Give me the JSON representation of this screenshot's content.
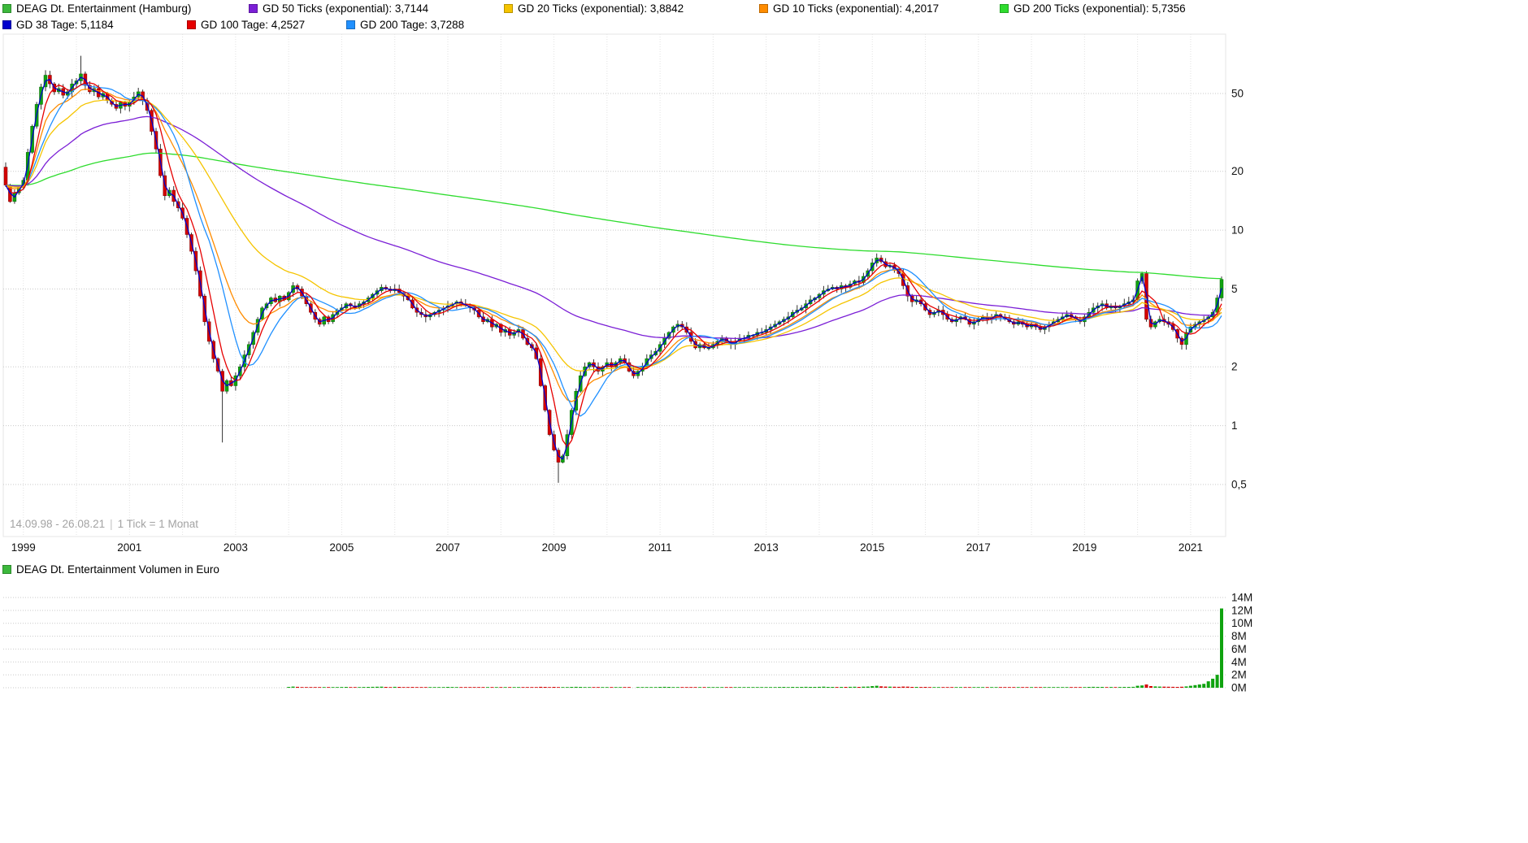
{
  "legend": {
    "row1": [
      {
        "label": "DEAG Dt. Entertainment (Hamburg)",
        "color": "#3cb83c"
      },
      {
        "label": "GD 50 Ticks (exponential): 3,7144",
        "color": "#7b1fd6"
      },
      {
        "label": "GD 20 Ticks (exponential): 3,8842",
        "color": "#f5c400"
      },
      {
        "label": "GD 10 Ticks (exponential): 4,2017",
        "color": "#ff8c00"
      },
      {
        "label": "GD 200 Ticks (exponential): 5,7356",
        "color": "#2edc2e"
      }
    ],
    "row2": [
      {
        "label": "GD 38 Tage: 5,1184",
        "color": "#0000cd"
      },
      {
        "label": "GD 100 Tage: 4,2527",
        "color": "#e60000"
      },
      {
        "label": "GD 200 Tage: 3,7288",
        "color": "#2090ff"
      }
    ]
  },
  "footer_note": {
    "range": "14.09.98 - 26.08.21",
    "separator": "|",
    "tick": "1 Tick = 1 Monat"
  },
  "volume_panel": {
    "legend": "DEAG Dt. Entertainment Volumen in Euro",
    "swatch_color": "#3cb83c",
    "y_ticks": [
      {
        "v": 14,
        "label": "14M"
      },
      {
        "v": 12,
        "label": "12M"
      },
      {
        "v": 10,
        "label": "10M"
      },
      {
        "v": 8,
        "label": "8M"
      },
      {
        "v": 6,
        "label": "6M"
      },
      {
        "v": 4,
        "label": "4M"
      },
      {
        "v": 2,
        "label": "2M"
      },
      {
        "v": 0,
        "label": "0M"
      }
    ]
  },
  "style": {
    "background": "#ffffff",
    "candle_up": "#0fa30f",
    "candle_down": "#d40000",
    "candle_up_edge": "#066606",
    "candle_down_edge": "#7d0000",
    "wick": "#333333",
    "grid_h": "#c9c9c9",
    "grid_v": "#e2e2e2",
    "axis_text": "#111111",
    "note_text": "#a3a3a3"
  },
  "chart_data": {
    "type": "candlestick",
    "title": "DEAG Dt. Entertainment (Hamburg)",
    "scale": "log",
    "interval": "1 Tick = 1 Monat",
    "date_range": "14.09.98 - 26.08.21",
    "x_start": "1998-09",
    "x_end": "2021-08",
    "x_tick_labels": [
      "1999",
      "2001",
      "2003",
      "2005",
      "2007",
      "2009",
      "2011",
      "2013",
      "2015",
      "2017",
      "2019",
      "2021"
    ],
    "y_ticks": [
      {
        "v": 50,
        "label": "50"
      },
      {
        "v": 20,
        "label": "20"
      },
      {
        "v": 10,
        "label": "10"
      },
      {
        "v": 5,
        "label": "5"
      },
      {
        "v": 2,
        "label": "2"
      },
      {
        "v": 1,
        "label": "1"
      },
      {
        "v": 0.5,
        "label": "0,5"
      }
    ],
    "y_range_approx": [
      0.27,
      100
    ],
    "first_open": 21,
    "closes": [
      17,
      14,
      15.5,
      16.5,
      18,
      25,
      34,
      44,
      54,
      62,
      56,
      51,
      53,
      49,
      51,
      56,
      58,
      63,
      55,
      51,
      53,
      48,
      50,
      46,
      44,
      42,
      45,
      43,
      45,
      48,
      51,
      46,
      41,
      32,
      26,
      19,
      15,
      16,
      14,
      13,
      11.5,
      9.5,
      7.8,
      6.2,
      4.6,
      3.4,
      2.7,
      2.2,
      1.9,
      1.5,
      1.7,
      1.6,
      1.8,
      2,
      2.3,
      2.6,
      3,
      3.5,
      4,
      4.2,
      4.5,
      4.3,
      4.6,
      4.4,
      4.8,
      5.2,
      5,
      4.6,
      4.2,
      3.8,
      3.5,
      3.3,
      3.6,
      3.4,
      3.7,
      3.9,
      4,
      4.2,
      4.1,
      4,
      4.2,
      4.3,
      4.5,
      4.7,
      4.9,
      5.1,
      5,
      4.9,
      5,
      4.8,
      4.6,
      4.4,
      4,
      3.8,
      3.7,
      3.6,
      3.7,
      3.8,
      3.9,
      4,
      4.1,
      4.2,
      4.3,
      4.2,
      4.1,
      4,
      3.9,
      3.6,
      3.4,
      3.5,
      3.2,
      3.3,
      3,
      3.1,
      2.9,
      3,
      3.1,
      2.8,
      2.6,
      2.5,
      2.2,
      1.6,
      1.2,
      0.9,
      0.75,
      0.65,
      0.7,
      0.9,
      1.2,
      1.5,
      1.8,
      2,
      2.1,
      2,
      1.9,
      2,
      2.1,
      2,
      2.1,
      2.2,
      2.1,
      1.9,
      1.8,
      1.9,
      2,
      2.2,
      2.3,
      2.4,
      2.6,
      2.8,
      3,
      3.2,
      3.3,
      3.2,
      3,
      2.7,
      2.5,
      2.6,
      2.5,
      2.5,
      2.6,
      2.7,
      2.8,
      2.7,
      2.6,
      2.7,
      2.8,
      2.8,
      2.9,
      2.9,
      3,
      3,
      3.1,
      3.2,
      3.3,
      3.4,
      3.5,
      3.6,
      3.8,
      3.9,
      4,
      4.2,
      4.4,
      4.5,
      4.7,
      4.9,
      5,
      5.1,
      5,
      5.2,
      5.1,
      5.3,
      5.5,
      5.4,
      5.8,
      6.2,
      6.8,
      7.2,
      6.9,
      6.5,
      6.6,
      6.3,
      6,
      5.2,
      4.6,
      4.3,
      4.4,
      4.2,
      3.9,
      3.7,
      3.8,
      3.9,
      3.7,
      3.5,
      3.4,
      3.5,
      3.6,
      3.5,
      3.3,
      3.4,
      3.5,
      3.6,
      3.5,
      3.6,
      3.7,
      3.6,
      3.5,
      3.4,
      3.3,
      3.4,
      3.3,
      3.2,
      3.3,
      3.2,
      3.1,
      3.2,
      3.3,
      3.4,
      3.5,
      3.6,
      3.7,
      3.6,
      3.5,
      3.4,
      3.6,
      3.8,
      4,
      4.1,
      4.2,
      4,
      4.1,
      4,
      4.1,
      4.2,
      4.3,
      4.4,
      5.5,
      6,
      3.5,
      3.2,
      3.4,
      3.5,
      3.4,
      3.3,
      3.1,
      2.8,
      2.6,
      3,
      3.2,
      3.3,
      3.4,
      3.5,
      3.6,
      3.8,
      4.5,
      5.6
    ],
    "wick_overrides": [
      {
        "i": 17,
        "high": 78
      },
      {
        "i": 49,
        "low": 0.82
      },
      {
        "i": 125,
        "low": 0.51
      },
      {
        "i": 197,
        "high": 7.6
      },
      {
        "i": 266,
        "low": 2.45
      }
    ],
    "volumes_millions": [
      0.01,
      0.02,
      0.01,
      0.02,
      0.02,
      0.03,
      0.03,
      0.04,
      0.04,
      0.03,
      0.02,
      0.02,
      0.02,
      0.02,
      0.02,
      0.02,
      0.03,
      0.03,
      0.02,
      0.02,
      0.02,
      0.01,
      0.02,
      0.01,
      0.01,
      0.01,
      0.01,
      0.01,
      0.02,
      0.02,
      0.03,
      0.02,
      0.02,
      0.03,
      0.02,
      0.03,
      0.03,
      0.02,
      0.02,
      0.02,
      0.02,
      0.02,
      0.02,
      0.03,
      0.03,
      0.02,
      0.03,
      0.02,
      0.02,
      0.03,
      0.02,
      0.02,
      0.02,
      0.02,
      0.02,
      0.03,
      0.04,
      0.05,
      0.05,
      0.04,
      0.05,
      0.03,
      0.04,
      0.03,
      0.12,
      0.18,
      0.14,
      0.1,
      0.09,
      0.08,
      0.07,
      0.06,
      0.08,
      0.07,
      0.09,
      0.1,
      0.11,
      0.13,
      0.1,
      0.09,
      0.1,
      0.11,
      0.12,
      0.14,
      0.15,
      0.16,
      0.12,
      0.1,
      0.14,
      0.12,
      0.1,
      0.09,
      0.11,
      0.08,
      0.07,
      0.06,
      0.07,
      0.08,
      0.09,
      0.1,
      0.12,
      0.11,
      0.1,
      0.09,
      0.08,
      0.09,
      0.08,
      0.1,
      0.09,
      0.08,
      0.1,
      0.09,
      0.1,
      0.09,
      0.08,
      0.07,
      0.08,
      0.09,
      0.08,
      0.07,
      0.1,
      0.14,
      0.12,
      0.1,
      0.12,
      0.1,
      0.08,
      0.1,
      0.12,
      0.14,
      0.12,
      0.1,
      0.09,
      0.08,
      0.07,
      0.08,
      0.09,
      0.08,
      0.07,
      0.08,
      0.07,
      0.06,
      0.05,
      0.06,
      0.07,
      0.08,
      0.09,
      0.1,
      0.12,
      0.14,
      0.12,
      0.1,
      0.09,
      0.08,
      0.07,
      0.08,
      0.09,
      0.07,
      0.06,
      0.07,
      0.08,
      0.07,
      0.06,
      0.07,
      0.06,
      0.07,
      0.08,
      0.07,
      0.08,
      0.07,
      0.08,
      0.09,
      0.1,
      0.09,
      0.1,
      0.11,
      0.12,
      0.1,
      0.12,
      0.11,
      0.12,
      0.14,
      0.13,
      0.12,
      0.14,
      0.16,
      0.13,
      0.12,
      0.11,
      0.13,
      0.12,
      0.14,
      0.15,
      0.13,
      0.16,
      0.18,
      0.25,
      0.3,
      0.22,
      0.18,
      0.16,
      0.15,
      0.14,
      0.18,
      0.16,
      0.13,
      0.12,
      0.11,
      0.12,
      0.1,
      0.09,
      0.1,
      0.09,
      0.08,
      0.07,
      0.08,
      0.09,
      0.08,
      0.07,
      0.08,
      0.09,
      0.1,
      0.08,
      0.09,
      0.1,
      0.08,
      0.07,
      0.06,
      0.07,
      0.08,
      0.07,
      0.06,
      0.08,
      0.07,
      0.06,
      0.07,
      0.08,
      0.09,
      0.1,
      0.09,
      0.1,
      0.08,
      0.07,
      0.08,
      0.1,
      0.12,
      0.14,
      0.12,
      0.13,
      0.1,
      0.11,
      0.1,
      0.11,
      0.12,
      0.13,
      0.14,
      0.3,
      0.35,
      0.5,
      0.25,
      0.2,
      0.18,
      0.16,
      0.15,
      0.14,
      0.13,
      0.15,
      0.2,
      0.3,
      0.4,
      0.5,
      0.6,
      1,
      1.4,
      2,
      12.3
    ],
    "overlays": [
      {
        "id": "gd200ticks",
        "name": "GD 200 Ticks (exponential)",
        "type": "ema",
        "period": 200,
        "last_value": "5,7356",
        "color": "#2edc2e"
      },
      {
        "id": "gd50ticks",
        "name": "GD 50 Ticks (exponential)",
        "type": "ema",
        "period": 50,
        "last_value": "3,7144",
        "color": "#7b1fd6"
      },
      {
        "id": "gd20ticks",
        "name": "GD 20 Ticks (exponential)",
        "type": "ema",
        "period": 20,
        "last_value": "3,8842",
        "color": "#f5c400"
      },
      {
        "id": "gd10ticks",
        "name": "GD 10 Ticks (exponential)",
        "type": "ema",
        "period": 10,
        "last_value": "4,2017",
        "color": "#ff8c00"
      },
      {
        "id": "gd200tage",
        "name": "GD 200 Tage",
        "type": "sma",
        "months": 10,
        "last_value": "3,7288",
        "color": "#2090ff"
      },
      {
        "id": "gd100tage",
        "name": "GD 100 Tage",
        "type": "sma",
        "months": 5,
        "last_value": "4,2527",
        "color": "#e60000"
      },
      {
        "id": "gd38tage",
        "name": "GD 38 Tage",
        "type": "sma",
        "months": 2,
        "last_value": "5,1184",
        "color": "#0000cd"
      }
    ]
  }
}
